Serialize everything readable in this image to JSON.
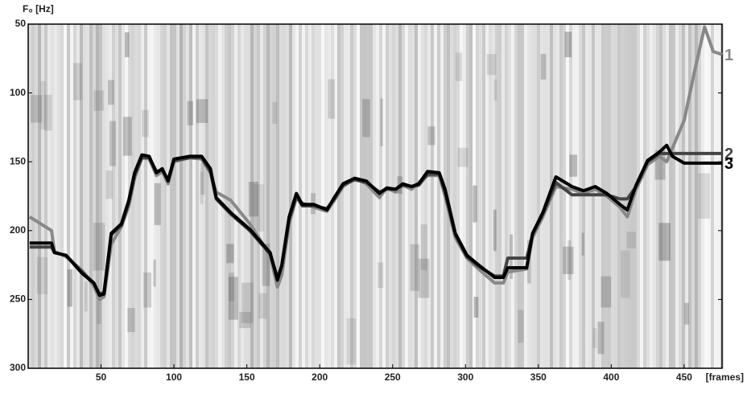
{
  "chart_data": {
    "type": "line",
    "y_label": "F₀ [Hz]",
    "x_label": "[frames]",
    "xlim": [
      0,
      476
    ],
    "xticks": [
      50,
      100,
      150,
      200,
      250,
      300,
      350,
      400,
      450
    ],
    "ylim": [
      300,
      50
    ],
    "yticks": [
      50,
      100,
      150,
      200,
      250,
      300
    ],
    "x": [
      1,
      16,
      18,
      26,
      37,
      45,
      49,
      52,
      57,
      64,
      69,
      73,
      78,
      83,
      88,
      92,
      96,
      100,
      111,
      119,
      125,
      129,
      139,
      152,
      166,
      171,
      174,
      179,
      184,
      188,
      196,
      205,
      210,
      216,
      224,
      232,
      241,
      246,
      252,
      257,
      263,
      268,
      274,
      282,
      286,
      293,
      301,
      309,
      320,
      326,
      329,
      342,
      346,
      353,
      362,
      373,
      381,
      389,
      397,
      406,
      411,
      417,
      425,
      433,
      438,
      442,
      450,
      457,
      464,
      470,
      476
    ],
    "series": [
      {
        "name": "1",
        "color": "#888888",
        "values": [
          190,
          200,
          215,
          219,
          229,
          240,
          250,
          248,
          210,
          197,
          182,
          162,
          147,
          148,
          160,
          157,
          166,
          150,
          147,
          148,
          158,
          172,
          178,
          195,
          218,
          241,
          232,
          195,
          176,
          180,
          183,
          186,
          178,
          168,
          162,
          166,
          176,
          169,
          172,
          167,
          170,
          165,
          160,
          160,
          175,
          205,
          220,
          228,
          238,
          238,
          230,
          228,
          205,
          190,
          168,
          170,
          173,
          170,
          175,
          183,
          190,
          170,
          152,
          146,
          150,
          140,
          120,
          85,
          52,
          70,
          72
        ]
      },
      {
        "name": "2",
        "color": "#444444",
        "values": [
          212,
          212,
          216,
          218,
          230,
          238,
          246,
          245,
          203,
          196,
          180,
          160,
          147,
          147,
          157,
          156,
          163,
          149,
          147,
          147,
          157,
          177,
          188,
          200,
          217,
          234,
          226,
          192,
          175,
          182,
          182,
          184,
          177,
          167,
          163,
          165,
          172,
          170,
          170,
          167,
          168,
          167,
          159,
          159,
          172,
          203,
          219,
          226,
          233,
          233,
          220,
          220,
          203,
          188,
          165,
          174,
          174,
          174,
          174,
          177,
          177,
          168,
          150,
          144,
          144,
          144,
          144,
          144,
          144,
          144,
          144
        ]
      },
      {
        "name": "3",
        "color": "#000000",
        "values": [
          209,
          209,
          216,
          218,
          231,
          238,
          247,
          246,
          202,
          195,
          178,
          158,
          145,
          146,
          158,
          155,
          164,
          148,
          146,
          146,
          155,
          176,
          187,
          199,
          216,
          236,
          225,
          190,
          173,
          181,
          181,
          185,
          176,
          166,
          162,
          164,
          173,
          169,
          170,
          166,
          168,
          166,
          157,
          158,
          170,
          202,
          218,
          225,
          234,
          234,
          227,
          227,
          202,
          187,
          161,
          168,
          171,
          168,
          173,
          181,
          185,
          167,
          149,
          143,
          138,
          146,
          151,
          151,
          151,
          151,
          151
        ]
      }
    ]
  }
}
